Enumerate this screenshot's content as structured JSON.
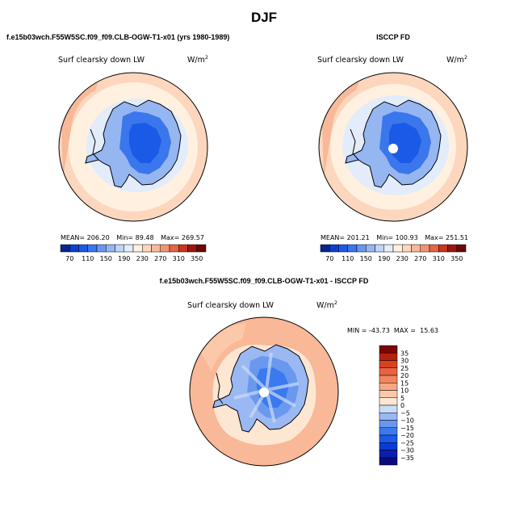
{
  "title": "DJF",
  "panels": [
    {
      "case_label": "f.e15b03wch.F55W5SC.f09_f09.CLB-OGW-T1-x01 (yrs 1980-1989)",
      "variable": "Surf clearsky down LW",
      "units": "W/m",
      "units_exp": "2",
      "stats": {
        "mean_label": "MEAN=",
        "mean": "206.20",
        "min_label": "Min=",
        "min": "89.48",
        "max_label": "Max=",
        "max": "269.57"
      }
    },
    {
      "case_label": "ISCCP FD",
      "variable": "Surf clearsky down LW",
      "units": "W/m",
      "units_exp": "2",
      "stats": {
        "mean_label": "MEAN=",
        "mean": "201.21",
        "min_label": "Min=",
        "min": "100.93",
        "max_label": "Max=",
        "max": "251.51"
      }
    },
    {
      "case_label": "f.e15b03wch.F55W5SC.f09_f09.CLB-OGW-T1-x01 - ISCCP FD",
      "variable": "Surf clearsky down LW",
      "units": "W/m",
      "units_exp": "2",
      "stats_text": "MIN = -43.73  MAX =  15.63"
    }
  ],
  "chart_data": [
    {
      "type": "heatmap",
      "projection": "south-polar-stereographic",
      "title": "Surf clearsky down LW",
      "colorbar": {
        "orientation": "horizontal",
        "tick_labels": [
          "70",
          "110",
          "150",
          "190",
          "230",
          "270",
          "310",
          "350"
        ],
        "levels": [
          70,
          90,
          110,
          130,
          150,
          170,
          190,
          210,
          230,
          250,
          270,
          290,
          310,
          330,
          350
        ],
        "colors": [
          "#08268a",
          "#0a3fd0",
          "#1a5ae6",
          "#3a76ec",
          "#6a96ee",
          "#96b6f1",
          "#c0d4f6",
          "#e2ecfa",
          "#fff0e0",
          "#fcd7bd",
          "#f9b898",
          "#f39470",
          "#e56443",
          "#c8361e",
          "#9b1610",
          "#6b0808"
        ]
      },
      "stats": {
        "mean": 206.2,
        "min": 89.48,
        "max": 269.57
      }
    },
    {
      "type": "heatmap",
      "projection": "south-polar-stereographic",
      "title": "Surf clearsky down LW",
      "colorbar": {
        "orientation": "horizontal",
        "tick_labels": [
          "70",
          "110",
          "150",
          "190",
          "230",
          "270",
          "310",
          "350"
        ],
        "levels": [
          70,
          90,
          110,
          130,
          150,
          170,
          190,
          210,
          230,
          250,
          270,
          290,
          310,
          330,
          350
        ],
        "colors": [
          "#08268a",
          "#0a3fd0",
          "#1a5ae6",
          "#3a76ec",
          "#6a96ee",
          "#96b6f1",
          "#c0d4f6",
          "#e2ecfa",
          "#fff0e0",
          "#fcd7bd",
          "#f9b898",
          "#f39470",
          "#e56443",
          "#c8361e",
          "#9b1610",
          "#6b0808"
        ]
      },
      "stats": {
        "mean": 201.21,
        "min": 100.93,
        "max": 251.51
      }
    },
    {
      "type": "heatmap",
      "projection": "south-polar-stereographic",
      "title": "Surf clearsky down LW",
      "colorbar": {
        "orientation": "vertical",
        "tick_labels": [
          "35",
          "30",
          "25",
          "20",
          "15",
          "10",
          "5",
          "0",
          "−5",
          "−10",
          "−15",
          "−20",
          "−25",
          "−30",
          "−35"
        ],
        "levels": [
          -35,
          -30,
          -25,
          -20,
          -15,
          -10,
          -5,
          0,
          5,
          10,
          15,
          20,
          25,
          30,
          35
        ],
        "colors": [
          "#0a0a7a",
          "#0a1fb0",
          "#0b3ad6",
          "#1a5ae8",
          "#3a7aee",
          "#6a98ef",
          "#9ab8f2",
          "#cadcf7",
          "#fde6d2",
          "#fbc9aa",
          "#f8a784",
          "#f28560",
          "#ea6240",
          "#d8431f",
          "#b52010",
          "#7a0606"
        ]
      },
      "stats": {
        "min": -43.73,
        "max": 15.63
      }
    }
  ]
}
